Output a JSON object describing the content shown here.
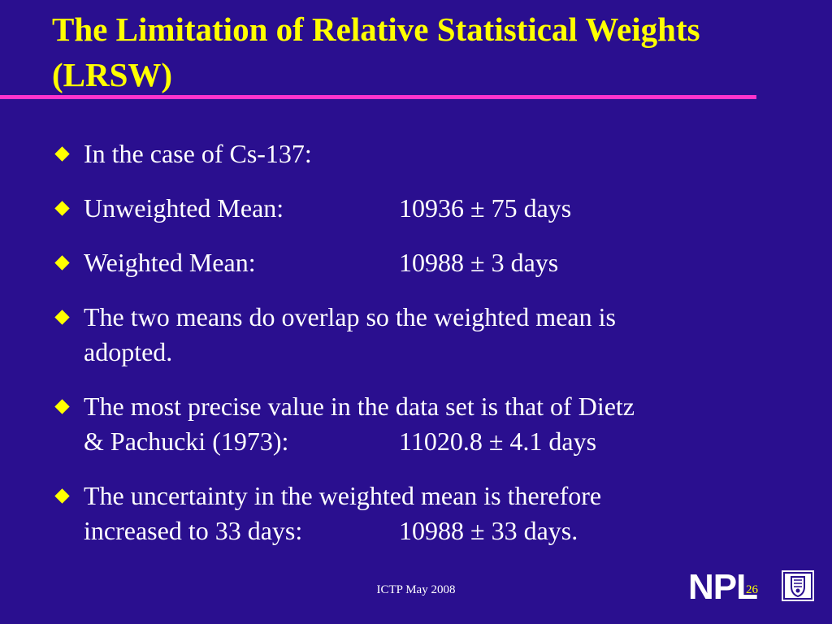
{
  "slide": {
    "title_line1": "The Limitation of Relative Statistical Weights",
    "title_line2": "(LRSW)",
    "bullets": [
      {
        "text": "In the case of Cs-137:"
      },
      {
        "label": "Unweighted Mean:",
        "value": "10936 ± 75 days"
      },
      {
        "label": "Weighted Mean:",
        "value": "10988 ± 3 days"
      },
      {
        "line1": "The two means do overlap so the weighted mean is",
        "line2": "adopted."
      },
      {
        "line1": "The most precise value in the data set is that of Dietz",
        "line2_label": "& Pachucki (1973):",
        "line2_value": "11020.8 ± 4.1 days"
      },
      {
        "line1": "The uncertainty in the weighted mean is therefore",
        "line2_label": "increased to 33 days:",
        "line2_value": "10988 ± 33 days."
      }
    ],
    "footer": "ICTP  May 2008",
    "page_number": "26",
    "logo_text": "NPL"
  },
  "colors": {
    "background": "#2a0f8f",
    "title": "#ffff00",
    "rule": "#ff33cc",
    "body_text": "#ffffff",
    "bullet": "#ffff00"
  },
  "icons": {
    "bullet": "diamond-bullet-icon",
    "crest": "npl-crest-icon"
  }
}
